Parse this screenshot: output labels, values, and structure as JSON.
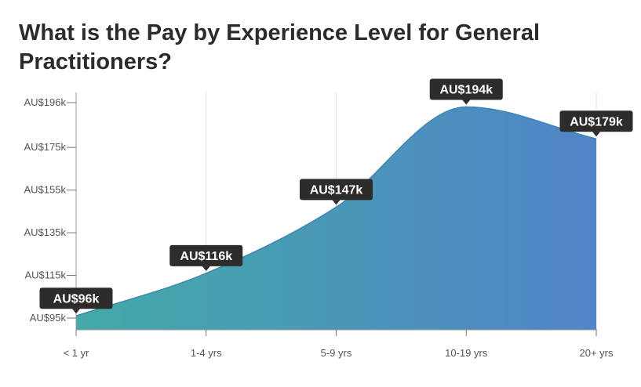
{
  "chart_data": {
    "type": "area",
    "title": "What is the Pay by Experience Level for General Practitioners?",
    "xlabel": "",
    "ylabel": "",
    "categories": [
      "< 1 yr",
      "1-4 yrs",
      "5-9 yrs",
      "10-19 yrs",
      "20+ yrs"
    ],
    "values": [
      96,
      116,
      147,
      194,
      179
    ],
    "value_labels": [
      "AU$96k",
      "AU$116k",
      "AU$147k",
      "AU$194k",
      "AU$179k"
    ],
    "y_ticks": [
      95,
      115,
      135,
      155,
      175,
      196
    ],
    "y_tick_labels": [
      "AU$95k",
      "AU$115k",
      "AU$135k",
      "AU$155k",
      "AU$175k",
      "AU$196k"
    ],
    "ylim": [
      90,
      200
    ],
    "grid": "vertical",
    "colors": {
      "gradient_start": "#43aaa8",
      "gradient_end": "#5084c8",
      "callout_bg": "#2e2b2b",
      "axis": "#999999",
      "grid": "#e2e2e2"
    }
  }
}
